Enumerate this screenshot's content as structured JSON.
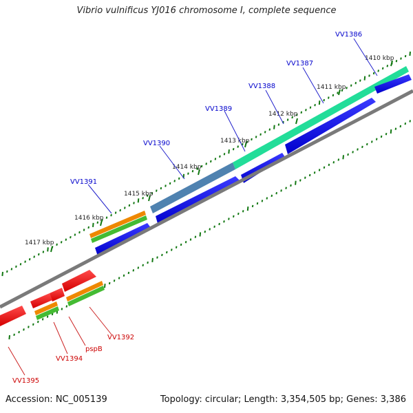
{
  "title": "Vibrio vulnificus YJ016 chromosome I, complete sequence",
  "footer": {
    "accession": "Accession: NC_005139",
    "summary": "Topology: circular; Length: 3,354,505 bp; Genes: 3,386"
  },
  "colors": {
    "forward_cds": "#0000ee",
    "reverse_cds": "#ee0000",
    "forward_label": "#0000cc",
    "reverse_label": "#cc0000",
    "track_orange": "#ee8800",
    "track_green": "#44bb33",
    "track_cyan": "#22dd99",
    "track_steel": "#4477aa",
    "backbone": "#777777",
    "tick": "#117711"
  },
  "ticks": [
    "1410 kbp",
    "1411 kbp",
    "1412 kbp",
    "1413 kbp",
    "1414 kbp",
    "1415 kbp",
    "1416 kbp",
    "1417 kbp"
  ],
  "forward_genes": [
    "VV1386",
    "VV1387",
    "VV1388",
    "VV1389",
    "VV1390",
    "VV1391"
  ],
  "reverse_genes": [
    "VV1392",
    "pspB",
    "VV1394",
    "VV1395"
  ]
}
